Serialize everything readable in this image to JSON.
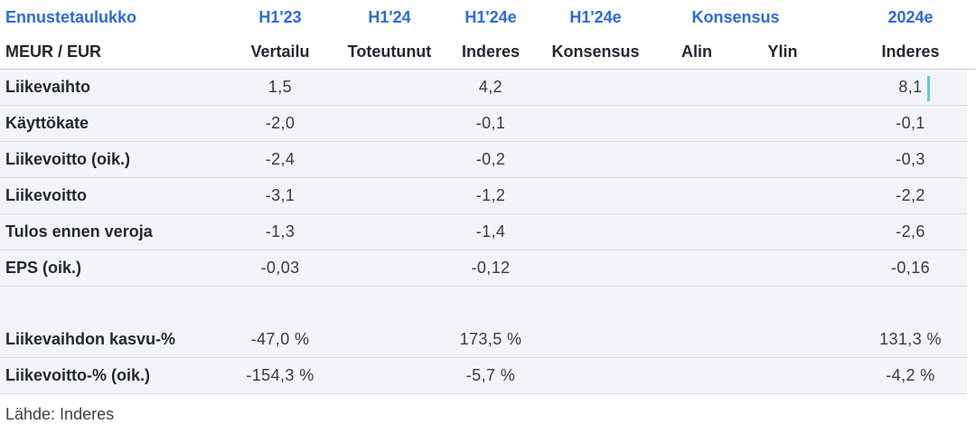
{
  "header": {
    "title": "Ennustetaulukko",
    "unit": "MEUR / EUR",
    "col1_period": "H1'23",
    "col1_sub": "Vertailu",
    "col2_period": "H1'24",
    "col2_sub": "Toteutunut",
    "col3_period": "H1'24e",
    "col3_sub": "Inderes",
    "col4_period": "H1'24e",
    "col4_sub": "Konsensus",
    "col56_period": "Konsensus",
    "col5_sub": "Alin",
    "col6_sub": "Ylin",
    "col7_period": "2024e",
    "col7_sub": "Inderes"
  },
  "rows": [
    {
      "label": "Liikevaihto",
      "cells": [
        "1,5",
        "",
        "4,2",
        "",
        "",
        "",
        "8,1"
      ]
    },
    {
      "label": "Käyttökate",
      "cells": [
        "-2,0",
        "",
        "-0,1",
        "",
        "",
        "",
        "-0,1"
      ]
    },
    {
      "label": "Liikevoitto (oik.)",
      "cells": [
        "-2,4",
        "",
        "-0,2",
        "",
        "",
        "",
        "-0,3"
      ]
    },
    {
      "label": "Liikevoitto",
      "cells": [
        "-3,1",
        "",
        "-1,2",
        "",
        "",
        "",
        "-2,2"
      ]
    },
    {
      "label": "Tulos ennen veroja",
      "cells": [
        "-1,3",
        "",
        "-1,4",
        "",
        "",
        "",
        "-2,6"
      ]
    },
    {
      "label": "EPS (oik.)",
      "cells": [
        "-0,03",
        "",
        "-0,12",
        "",
        "",
        "",
        "-0,16"
      ]
    },
    {
      "label": "Liikevaihdon kasvu-%",
      "cells": [
        "-47,0 %",
        "",
        "173,5 %",
        "",
        "",
        "",
        "131,3 %"
      ]
    },
    {
      "label": "Liikevoitto-% (oik.)",
      "cells": [
        "-154,3 %",
        "",
        "-5,7 %",
        "",
        "",
        "",
        "-4,2 %"
      ]
    }
  ],
  "footer": {
    "source": "Lähde: Inderes"
  },
  "colors": {
    "accent_blue": "#2d69de",
    "label_dark": "#232830",
    "row_bg": "#f3f4f7",
    "row_border": "#d8dade",
    "marker_teal": "#5fc9da"
  }
}
